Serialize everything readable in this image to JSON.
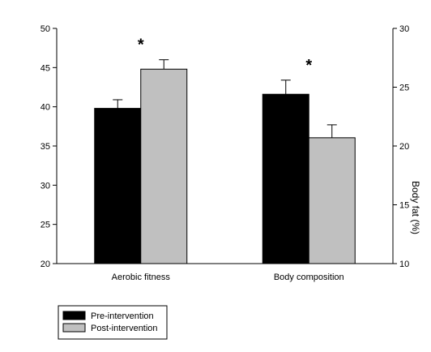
{
  "chart_data": {
    "type": "bar",
    "categories": [
      "Aerobic fitness",
      "Body composition"
    ],
    "series": [
      {
        "name": "Pre-intervention",
        "color": "#000000",
        "axis": [
          "left",
          "right"
        ],
        "values": [
          39.8,
          24.4
        ],
        "errors": [
          1.1,
          1.2
        ]
      },
      {
        "name": "Post-intervention",
        "color": "#c0c0c0",
        "axis": [
          "left",
          "right"
        ],
        "values": [
          44.8,
          20.7
        ],
        "errors": [
          1.2,
          1.1
        ]
      }
    ],
    "significance": [
      "*",
      "*"
    ],
    "y_left": {
      "lim": [
        20,
        50
      ],
      "ticks": [
        20,
        25,
        30,
        35,
        40,
        45,
        50
      ],
      "label": ""
    },
    "y_right": {
      "lim": [
        10,
        30
      ],
      "ticks": [
        10,
        15,
        20,
        25,
        30
      ],
      "label": "Body fat (%)"
    },
    "grid": false,
    "legend_position": "bottom-left"
  }
}
